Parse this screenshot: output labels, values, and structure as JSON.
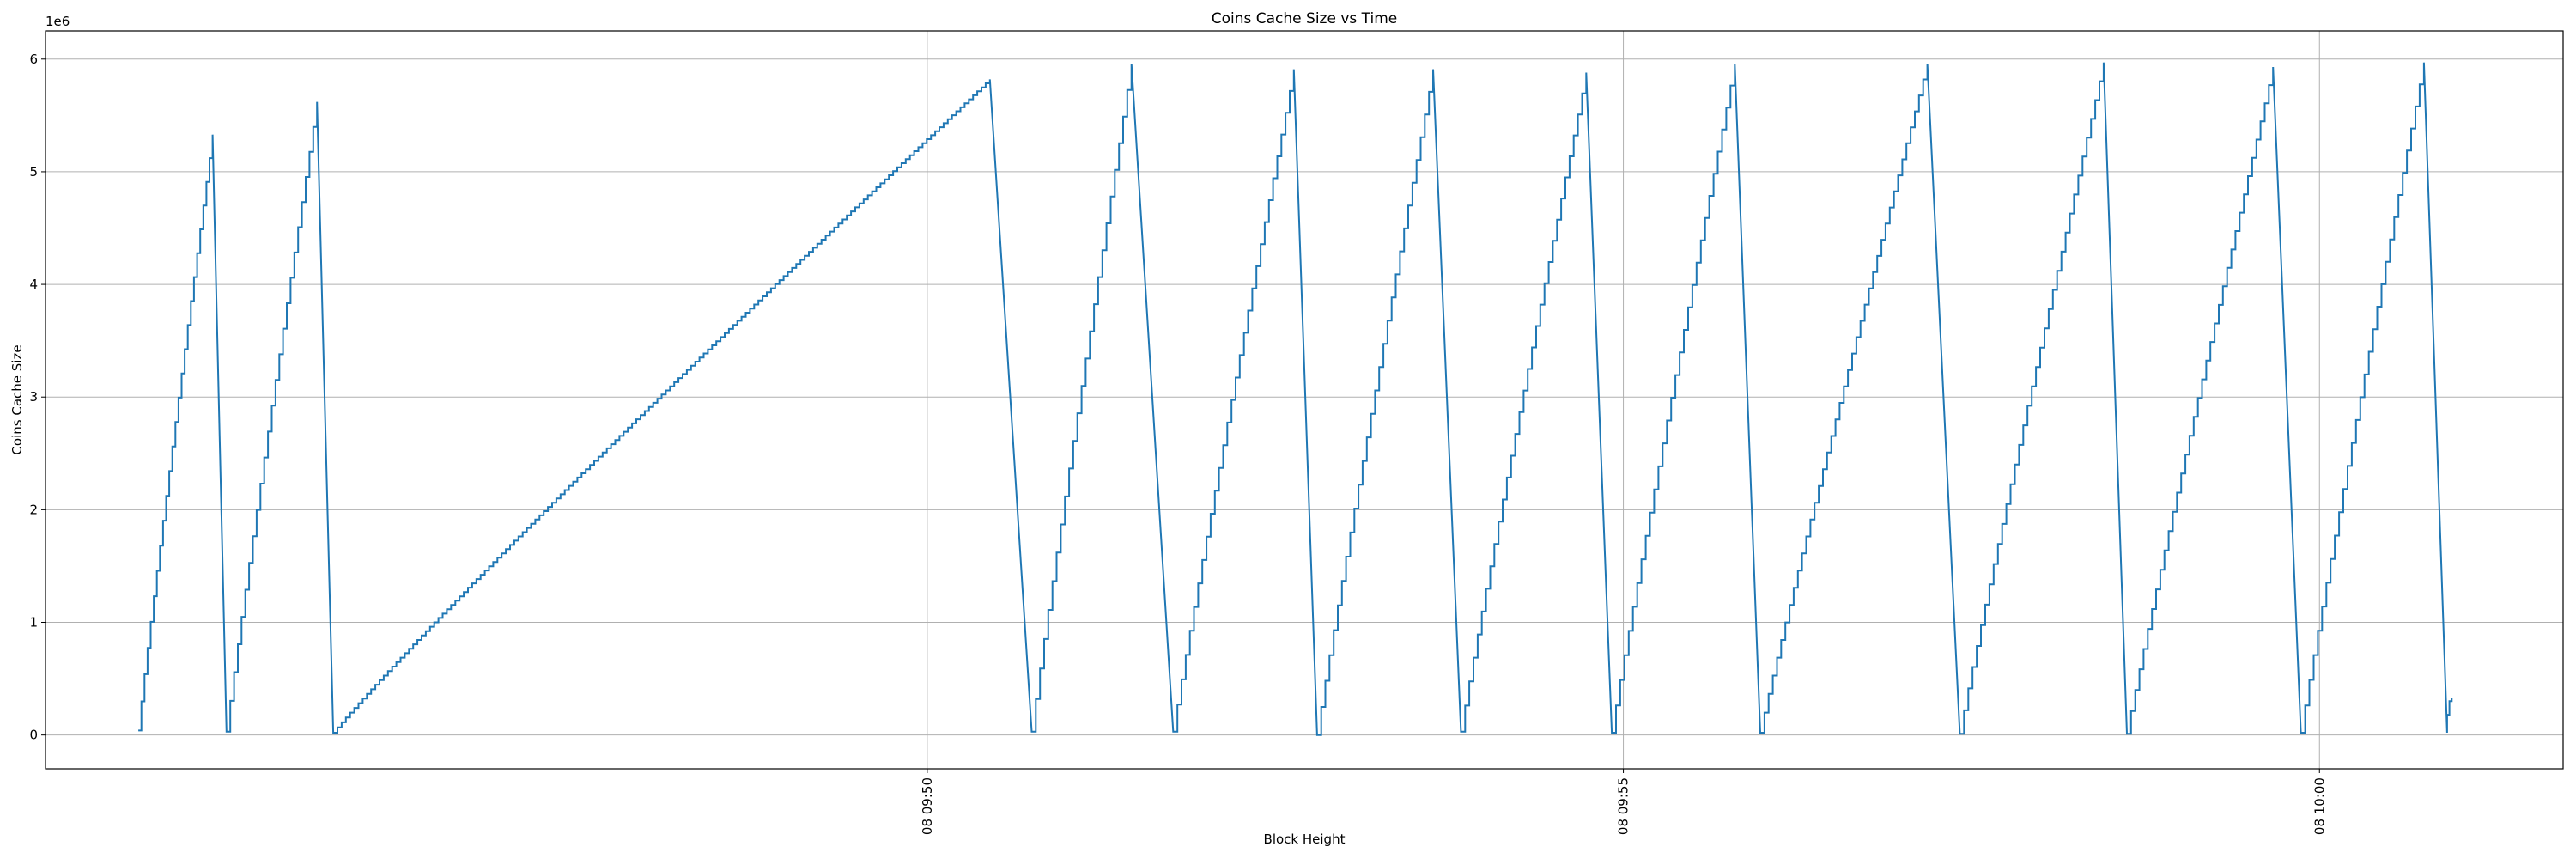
{
  "chart_data": {
    "type": "line",
    "title": "Coins Cache Size vs Time",
    "xlabel": "Block Height",
    "ylabel": "Coins Cache Size",
    "y_offset_label": "1e6",
    "y_unit_multiplier": 1000000,
    "grid": true,
    "legend": "none",
    "x_axis": {
      "type": "time",
      "range": [
        "09:43:40",
        "10:01:45"
      ],
      "ticks": [
        {
          "t": "09:50:00",
          "label": "08 09:50"
        },
        {
          "t": "09:55:00",
          "label": "08 09:55"
        },
        {
          "t": "10:00:00",
          "label": "08 10:00"
        }
      ]
    },
    "y_axis": {
      "range": [
        -0.3,
        6.25
      ],
      "ticks": [
        0,
        1,
        2,
        3,
        4,
        5,
        6
      ]
    },
    "series": [
      {
        "color": "#1f77b4",
        "cycles": [
          {
            "start": "09:44:20",
            "peak_time": "09:44:52",
            "peak": 5.33,
            "end": "09:44:58",
            "end_value": 0.03
          },
          {
            "start": "09:44:58",
            "peak_time": "09:45:37",
            "peak": 5.62,
            "end": "09:45:44",
            "end_value": 0.02
          },
          {
            "start": "09:45:44",
            "peak_time": "09:50:27",
            "peak": 5.82,
            "end": "09:50:45",
            "end_value": 0.03
          },
          {
            "start": "09:50:45",
            "peak_time": "09:51:28",
            "peak": 5.96,
            "end": "09:51:46",
            "end_value": 0.03
          },
          {
            "start": "09:51:46",
            "peak_time": "09:52:38",
            "peak": 5.91,
            "end": "09:52:48",
            "end_value": 0.0
          },
          {
            "start": "09:52:48",
            "peak_time": "09:53:38",
            "peak": 5.91,
            "end": "09:53:50",
            "end_value": 0.03
          },
          {
            "start": "09:53:50",
            "peak_time": "09:54:44",
            "peak": 5.88,
            "end": "09:54:55",
            "end_value": 0.02
          },
          {
            "start": "09:54:55",
            "peak_time": "09:55:48",
            "peak": 5.96,
            "end": "09:55:59",
            "end_value": 0.02
          },
          {
            "start": "09:55:59",
            "peak_time": "09:57:11",
            "peak": 5.96,
            "end": "09:57:25",
            "end_value": 0.01
          },
          {
            "start": "09:57:25",
            "peak_time": "09:58:27",
            "peak": 5.97,
            "end": "09:58:37",
            "end_value": 0.01
          },
          {
            "start": "09:58:37",
            "peak_time": "09:59:40",
            "peak": 5.93,
            "end": "09:59:52",
            "end_value": 0.02
          },
          {
            "start": "09:59:52",
            "peak_time": "10:00:45",
            "peak": 5.97,
            "end": "10:00:55",
            "end_value": 0.02
          }
        ],
        "tail": [
          {
            "t": "10:00:55",
            "v": 0.18
          },
          {
            "t": "10:00:56",
            "v": 0.3
          },
          {
            "t": "10:00:57",
            "v": 0.33
          }
        ]
      }
    ]
  }
}
